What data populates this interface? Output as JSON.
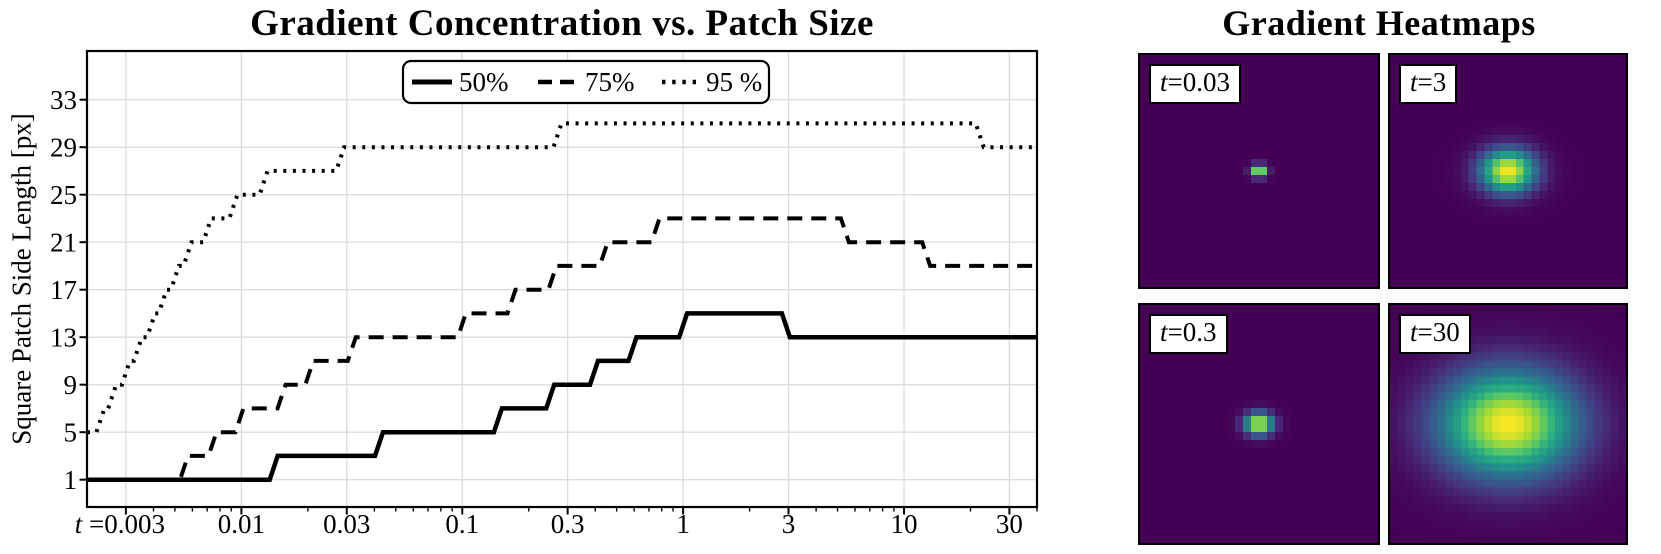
{
  "chart_data": {
    "type": "line",
    "title": "Gradient Concentration vs. Patch Size",
    "ylabel": "Square Patch Side Length [px]",
    "x_scale": "log",
    "xlim": [
      0.002,
      40
    ],
    "ylim": [
      -1.3,
      37.1
    ],
    "x_ticks": [
      0.003,
      0.01,
      0.03,
      0.1,
      0.3,
      1,
      3,
      10,
      30
    ],
    "x_tick_labels": [
      "0.003",
      "0.01",
      "0.03",
      "0.1",
      "0.3",
      "1",
      "3",
      "10",
      "30"
    ],
    "x_first_tick_prefix": "t =",
    "y_ticks": [
      1,
      5,
      9,
      13,
      17,
      21,
      25,
      29,
      33
    ],
    "grid": true,
    "legend_position": "top-center",
    "series": [
      {
        "name": "50%",
        "style": "solid",
        "steps": [
          [
            0.002,
            1
          ],
          [
            0.014,
            3
          ],
          [
            0.042,
            5
          ],
          [
            0.145,
            7
          ],
          [
            0.25,
            9
          ],
          [
            0.395,
            11
          ],
          [
            0.59,
            13
          ],
          [
            1.0,
            15
          ],
          [
            2.92,
            13
          ]
        ]
      },
      {
        "name": "75%",
        "style": "dashed",
        "steps": [
          [
            0.002,
            1
          ],
          [
            0.0055,
            3
          ],
          [
            0.0074,
            5
          ],
          [
            0.0098,
            7
          ],
          [
            0.0152,
            9
          ],
          [
            0.0203,
            11
          ],
          [
            0.0316,
            13
          ],
          [
            0.0995,
            15
          ],
          [
            0.167,
            17
          ],
          [
            0.256,
            19
          ],
          [
            0.437,
            21
          ],
          [
            0.75,
            23
          ],
          [
            5.4,
            21
          ],
          [
            12.6,
            19
          ]
        ]
      },
      {
        "name": "95 %",
        "style": "dotted",
        "steps": [
          [
            0.002,
            5
          ],
          [
            0.0023,
            7
          ],
          [
            0.0026,
            9
          ],
          [
            0.003,
            11
          ],
          [
            0.0034,
            13
          ],
          [
            0.0039,
            15
          ],
          [
            0.0044,
            17
          ],
          [
            0.005,
            19
          ],
          [
            0.0057,
            21
          ],
          [
            0.007,
            23
          ],
          [
            0.0092,
            25
          ],
          [
            0.0126,
            27
          ],
          [
            0.028,
            29
          ],
          [
            0.27,
            31
          ],
          [
            22,
            29
          ]
        ]
      }
    ]
  },
  "heatmaps_section": {
    "title": "Gradient Heatmaps",
    "panels": [
      {
        "label": "t=0.03",
        "t": 0.03,
        "sigma_cells": 0.52
      },
      {
        "label": "t=3",
        "t": 3,
        "sigma_cells": 1.9
      },
      {
        "label": "t=0.3",
        "t": 0.3,
        "sigma_cells": 0.95
      },
      {
        "label": "t=30",
        "t": 30,
        "sigma_cells": 4.7
      }
    ],
    "elongation_x": 1.3
  },
  "colors": {
    "curve": "#000000",
    "grid": "#dcdcdc",
    "background": "#ffffff",
    "spine": "#000000",
    "heatmap_background": "#440154",
    "viridis": [
      [
        0.0,
        "#440154"
      ],
      [
        0.13,
        "#472c7a"
      ],
      [
        0.25,
        "#3b518b"
      ],
      [
        0.38,
        "#2c718e"
      ],
      [
        0.5,
        "#21918c"
      ],
      [
        0.63,
        "#27ad81"
      ],
      [
        0.75,
        "#5cc863"
      ],
      [
        0.88,
        "#aadc32"
      ],
      [
        1.0,
        "#fde725"
      ]
    ]
  }
}
